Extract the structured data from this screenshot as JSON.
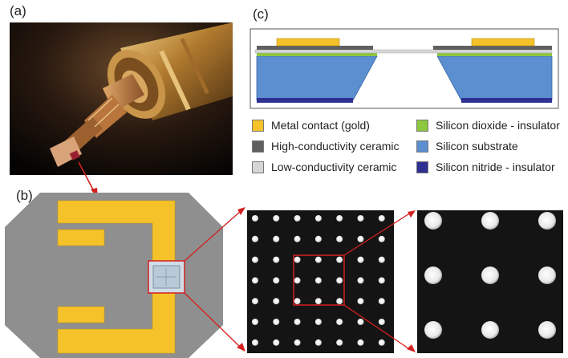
{
  "panels": {
    "a": {
      "label": "(a)"
    },
    "b": {
      "label": "(b)"
    },
    "c": {
      "label": "(c)"
    }
  },
  "legend": [
    {
      "text": "Metal contact (gold)",
      "color": "#f5c22a"
    },
    {
      "text": "High-conductivity ceramic",
      "color": "#606060"
    },
    {
      "text": "Low-conductivity ceramic",
      "color": "#d6d6d6"
    },
    {
      "text": "Silicon dioxide - insulator",
      "color": "#8dc63f"
    },
    {
      "text": "Silicon substrate",
      "color": "#5b8fd0"
    },
    {
      "text": "Silicon nitride - insulator",
      "color": "#2e3192"
    }
  ],
  "colors": {
    "gold": "#f5c22a",
    "chip_gray": "#8f8f8f",
    "highlight_red": "#d42020",
    "micrograph_bg": "#141414",
    "dot": "#f2f2f2"
  }
}
